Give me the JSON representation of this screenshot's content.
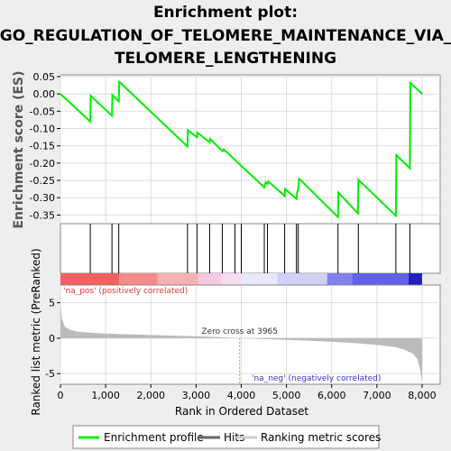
{
  "chart_data": {
    "type": "line",
    "title_lines": [
      "Enrichment plot:",
      "GO_REGULATION_OF_TELOMERE_MAINTENANCE_VIA_",
      "TELOMERE_LENGTHENING"
    ],
    "ylabel_top": "Enrichment score (ES)",
    "ylabel_bottom": "Ranked list metric (PreRanked)",
    "xlabel": "Rank in Ordered Dataset",
    "x_range": [
      0,
      8400
    ],
    "x_ticks": [
      0,
      1000,
      2000,
      3000,
      4000,
      5000,
      6000,
      7000,
      8000
    ],
    "x_tick_labels": [
      "0",
      "1,000",
      "2,000",
      "3,000",
      "4,000",
      "5,000",
      "6,000",
      "7,000",
      "8,000"
    ],
    "es_range": [
      -0.375,
      0.055
    ],
    "es_ticks": [
      0.05,
      0.0,
      -0.05,
      -0.1,
      -0.15,
      -0.2,
      -0.25,
      -0.3,
      -0.35
    ],
    "es_tick_labels": [
      "0.05",
      "0.00",
      "-0.05",
      "-0.10",
      "-0.15",
      "-0.20",
      "-0.25",
      "-0.30",
      "-0.35"
    ],
    "metric_range": [
      -6.5,
      7.5
    ],
    "metric_ticks": [
      5,
      0,
      -5
    ],
    "metric_tick_labels": [
      "5",
      "0",
      "-5"
    ],
    "enrichment_profile": {
      "name": "Enrichment profile",
      "color": "#00ee00",
      "points": [
        [
          0,
          0.0
        ],
        [
          660,
          -0.08
        ],
        [
          670,
          -0.005
        ],
        [
          1140,
          -0.063
        ],
        [
          1150,
          -0.003
        ],
        [
          1290,
          -0.022
        ],
        [
          1300,
          0.035
        ],
        [
          2810,
          -0.152
        ],
        [
          2820,
          -0.105
        ],
        [
          3020,
          -0.125
        ],
        [
          3030,
          -0.112
        ],
        [
          3300,
          -0.14
        ],
        [
          3310,
          -0.13
        ],
        [
          3580,
          -0.165
        ],
        [
          3610,
          -0.16
        ],
        [
          4510,
          -0.27
        ],
        [
          4540,
          -0.255
        ],
        [
          4580,
          -0.26
        ],
        [
          4600,
          -0.253
        ],
        [
          4960,
          -0.295
        ],
        [
          4970,
          -0.275
        ],
        [
          5220,
          -0.303
        ],
        [
          5240,
          -0.283
        ],
        [
          5260,
          -0.275
        ],
        [
          5280,
          -0.245
        ],
        [
          6140,
          -0.356
        ],
        [
          6150,
          -0.285
        ],
        [
          6580,
          -0.345
        ],
        [
          6590,
          -0.248
        ],
        [
          7420,
          -0.352
        ],
        [
          7430,
          -0.177
        ],
        [
          7730,
          -0.215
        ],
        [
          7740,
          0.032
        ],
        [
          8000,
          0.0
        ]
      ]
    },
    "hits": [
      660,
      1140,
      1290,
      2810,
      3020,
      3300,
      3580,
      3860,
      4000,
      4510,
      4580,
      4960,
      5220,
      5260,
      6140,
      6590,
      7420,
      7730
    ],
    "hits_name": "Hits",
    "ranking_metric_name": "Ranking metric scores",
    "metric_profile": {
      "color": "#bbbbbb",
      "points": [
        [
          0,
          4.8
        ],
        [
          30,
          2.8
        ],
        [
          100,
          1.6
        ],
        [
          200,
          1.2
        ],
        [
          400,
          0.9
        ],
        [
          700,
          0.75
        ],
        [
          1000,
          0.65
        ],
        [
          1500,
          0.55
        ],
        [
          2000,
          0.45
        ],
        [
          2500,
          0.36
        ],
        [
          3000,
          0.27
        ],
        [
          3500,
          0.15
        ],
        [
          3965,
          0.0
        ],
        [
          4500,
          -0.12
        ],
        [
          5000,
          -0.24
        ],
        [
          5500,
          -0.36
        ],
        [
          6000,
          -0.5
        ],
        [
          6500,
          -0.68
        ],
        [
          7000,
          -0.95
        ],
        [
          7400,
          -1.25
        ],
        [
          7600,
          -1.6
        ],
        [
          7800,
          -2.2
        ],
        [
          7900,
          -3.0
        ],
        [
          7960,
          -4.5
        ],
        [
          8000,
          -6.2
        ]
      ]
    },
    "zero_cross": 3965,
    "zero_cross_label": "Zero cross at 3965",
    "pos_label": "'na_pos' (positively correlated)",
    "neg_label": "'na_neg' (negatively correlated)",
    "heat_bands": [
      {
        "start": 0,
        "end": 1300,
        "color": "#f46060"
      },
      {
        "start": 1300,
        "end": 2150,
        "color": "#f78a8a"
      },
      {
        "start": 2150,
        "end": 3050,
        "color": "#f8b0b0"
      },
      {
        "start": 3050,
        "end": 3550,
        "color": "#f8c8e0"
      },
      {
        "start": 3550,
        "end": 4000,
        "color": "#f8dcf0"
      },
      {
        "start": 4000,
        "end": 4800,
        "color": "#e8e8f8"
      },
      {
        "start": 4800,
        "end": 5900,
        "color": "#d0d0f8"
      },
      {
        "start": 5900,
        "end": 6450,
        "color": "#8080ee"
      },
      {
        "start": 6450,
        "end": 7700,
        "color": "#6060e8"
      },
      {
        "start": 7700,
        "end": 8000,
        "color": "#2020c0"
      }
    ],
    "legend_position": "bottom"
  }
}
